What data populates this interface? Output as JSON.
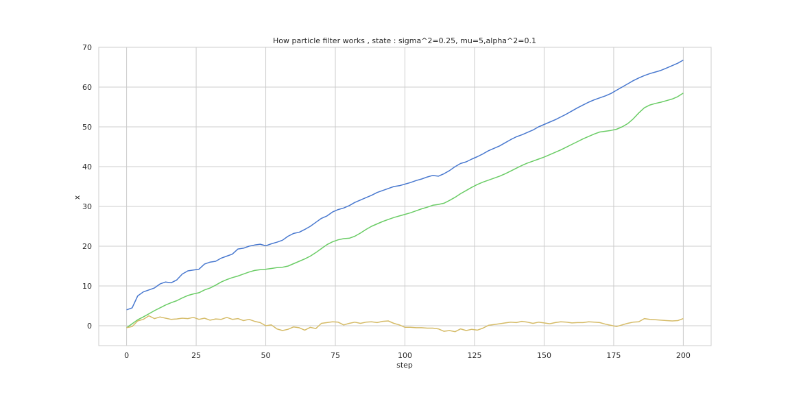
{
  "chart_data": {
    "type": "line",
    "title": "How particle filter works , state : sigma^2=0.25, mu=5,alpha^2=0.1",
    "xlabel": "step",
    "ylabel": "x",
    "xlim": [
      -10,
      210
    ],
    "ylim": [
      -5,
      70
    ],
    "xticks": [
      0,
      25,
      50,
      75,
      100,
      125,
      150,
      175,
      200
    ],
    "yticks": [
      0,
      10,
      20,
      30,
      40,
      50,
      60,
      70
    ],
    "grid": true,
    "legend": "none",
    "series": [
      {
        "color": "#4878cf",
        "x": [
          0,
          2,
          4,
          6,
          8,
          10,
          12,
          14,
          16,
          18,
          20,
          22,
          24,
          26,
          28,
          30,
          32,
          34,
          36,
          38,
          40,
          42,
          44,
          46,
          48,
          50,
          52,
          54,
          56,
          58,
          60,
          62,
          64,
          66,
          68,
          70,
          72,
          74,
          76,
          78,
          80,
          82,
          84,
          86,
          88,
          90,
          92,
          94,
          96,
          98,
          100,
          102,
          104,
          106,
          108,
          110,
          112,
          114,
          116,
          118,
          120,
          122,
          124,
          126,
          128,
          130,
          132,
          134,
          136,
          138,
          140,
          142,
          144,
          146,
          148,
          150,
          152,
          154,
          156,
          158,
          160,
          162,
          164,
          166,
          168,
          170,
          172,
          174,
          176,
          178,
          180,
          182,
          184,
          186,
          188,
          190,
          192,
          194,
          196,
          198,
          200
        ],
        "y": [
          4,
          4.5,
          7.5,
          8.5,
          9,
          9.5,
          10.5,
          11,
          10.8,
          11.5,
          13,
          13.8,
          14,
          14.2,
          15.5,
          16,
          16.2,
          17,
          17.5,
          18,
          19.3,
          19.5,
          20,
          20.3,
          20.5,
          20.1,
          20.6,
          21,
          21.5,
          22.5,
          23.2,
          23.5,
          24.2,
          25,
          26,
          27,
          27.6,
          28.6,
          29.2,
          29.6,
          30.2,
          31,
          31.6,
          32.2,
          32.8,
          33.5,
          34,
          34.5,
          35,
          35.2,
          35.6,
          36,
          36.5,
          36.9,
          37.4,
          37.8,
          37.6,
          38.2,
          39,
          40,
          40.8,
          41.2,
          41.9,
          42.5,
          43.2,
          44,
          44.6,
          45.2,
          46,
          46.8,
          47.5,
          48,
          48.6,
          49.2,
          50,
          50.6,
          51.2,
          51.8,
          52.5,
          53.2,
          54,
          54.8,
          55.5,
          56.2,
          56.8,
          57.3,
          57.8,
          58.4,
          59.2,
          60,
          60.8,
          61.6,
          62.3,
          62.9,
          63.4,
          63.8,
          64.2,
          64.8,
          65.4,
          66,
          66.8
        ]
      },
      {
        "color": "#6acc65",
        "x": [
          0,
          2,
          4,
          6,
          8,
          10,
          12,
          14,
          16,
          18,
          20,
          22,
          24,
          26,
          28,
          30,
          32,
          34,
          36,
          38,
          40,
          42,
          44,
          46,
          48,
          50,
          52,
          54,
          56,
          58,
          60,
          62,
          64,
          66,
          68,
          70,
          72,
          74,
          76,
          78,
          80,
          82,
          84,
          86,
          88,
          90,
          92,
          94,
          96,
          98,
          100,
          102,
          104,
          106,
          108,
          110,
          112,
          114,
          116,
          118,
          120,
          122,
          124,
          126,
          128,
          130,
          132,
          134,
          136,
          138,
          140,
          142,
          144,
          146,
          148,
          150,
          152,
          154,
          156,
          158,
          160,
          162,
          164,
          166,
          168,
          170,
          172,
          174,
          176,
          178,
          180,
          182,
          184,
          186,
          188,
          190,
          192,
          194,
          196,
          198,
          200
        ],
        "y": [
          -0.5,
          0.5,
          1.5,
          2.2,
          3,
          3.8,
          4.5,
          5.2,
          5.8,
          6.3,
          7,
          7.6,
          8,
          8.3,
          9,
          9.5,
          10.2,
          11,
          11.6,
          12.1,
          12.5,
          13,
          13.5,
          13.9,
          14.1,
          14.2,
          14.4,
          14.6,
          14.7,
          15,
          15.6,
          16.2,
          16.8,
          17.5,
          18.4,
          19.4,
          20.4,
          21.1,
          21.6,
          21.9,
          22,
          22.5,
          23.3,
          24.2,
          25,
          25.6,
          26.2,
          26.7,
          27.2,
          27.6,
          28,
          28.4,
          28.9,
          29.4,
          29.8,
          30.3,
          30.5,
          30.8,
          31.5,
          32.3,
          33.2,
          34,
          34.8,
          35.5,
          36.1,
          36.6,
          37.1,
          37.6,
          38.2,
          38.9,
          39.6,
          40.3,
          40.9,
          41.4,
          41.9,
          42.4,
          43,
          43.6,
          44.2,
          44.9,
          45.6,
          46.3,
          47,
          47.6,
          48.2,
          48.7,
          48.9,
          49.1,
          49.4,
          50,
          50.8,
          52,
          53.5,
          54.8,
          55.5,
          55.9,
          56.2,
          56.6,
          57,
          57.6,
          58.5
        ]
      },
      {
        "color": "#d5bb67",
        "x": [
          0,
          2,
          4,
          6,
          8,
          10,
          12,
          14,
          16,
          18,
          20,
          22,
          24,
          26,
          28,
          30,
          32,
          34,
          36,
          38,
          40,
          42,
          44,
          46,
          48,
          50,
          52,
          54,
          56,
          58,
          60,
          62,
          64,
          66,
          68,
          70,
          72,
          74,
          76,
          78,
          80,
          82,
          84,
          86,
          88,
          90,
          92,
          94,
          96,
          98,
          100,
          102,
          104,
          106,
          108,
          110,
          112,
          114,
          116,
          118,
          120,
          122,
          124,
          126,
          128,
          130,
          132,
          134,
          136,
          138,
          140,
          142,
          144,
          146,
          148,
          150,
          152,
          154,
          156,
          158,
          160,
          162,
          164,
          166,
          168,
          170,
          172,
          174,
          176,
          178,
          180,
          182,
          184,
          186,
          188,
          190,
          192,
          194,
          196,
          198,
          200
        ],
        "y": [
          -0.5,
          -0.2,
          1.2,
          1.6,
          2.5,
          1.8,
          2.2,
          1.9,
          1.6,
          1.7,
          1.9,
          1.8,
          2.1,
          1.6,
          1.9,
          1.4,
          1.7,
          1.6,
          2.1,
          1.6,
          1.8,
          1.3,
          1.6,
          1.1,
          0.8,
          0,
          0.2,
          -0.8,
          -1.2,
          -0.9,
          -0.3,
          -0.5,
          -1.1,
          -0.4,
          -0.7,
          0.6,
          0.8,
          1,
          0.9,
          0.2,
          0.6,
          0.9,
          0.6,
          0.9,
          1,
          0.8,
          1.1,
          1.2,
          0.6,
          0.2,
          -0.4,
          -0.4,
          -0.5,
          -0.5,
          -0.6,
          -0.6,
          -0.8,
          -1.4,
          -1.2,
          -1.5,
          -0.8,
          -1.2,
          -0.9,
          -1.1,
          -0.6,
          0.1,
          0.3,
          0.5,
          0.7,
          0.9,
          0.8,
          1.1,
          0.9,
          0.6,
          0.9,
          0.7,
          0.5,
          0.8,
          1,
          0.9,
          0.7,
          0.8,
          0.8,
          1,
          0.9,
          0.8,
          0.4,
          0.1,
          -0.2,
          0.2,
          0.6,
          0.9,
          1,
          1.8,
          1.6,
          1.5,
          1.4,
          1.3,
          1.2,
          1.3,
          1.8
        ]
      }
    ]
  }
}
